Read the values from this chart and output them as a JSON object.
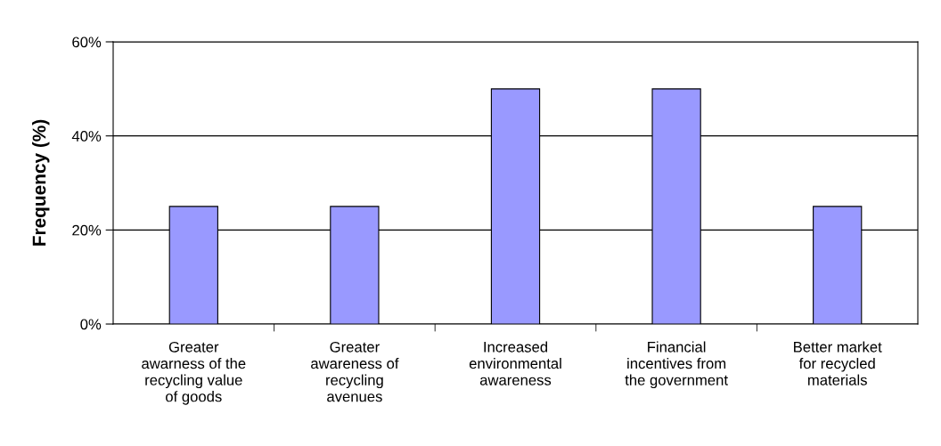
{
  "chart_data": {
    "type": "bar",
    "ylabel": "Frequency (%)",
    "categories": [
      "Greater\nawarness of the\nrecycling value\nof goods",
      "Greater\nawareness of\nrecycling\navenues",
      "Increased\nenvironmental\nawareness",
      "Financial\nincentives from\nthe government",
      "Better market\nfor recycled\nmaterials"
    ],
    "values": [
      25,
      25,
      50,
      50,
      25
    ],
    "color": "#9999ff",
    "ylim": [
      0,
      60
    ],
    "yticks": [
      {
        "value": 0,
        "label": "0%"
      },
      {
        "value": 20,
        "label": "20%"
      },
      {
        "value": 40,
        "label": "40%"
      },
      {
        "value": 60,
        "label": "60%"
      }
    ],
    "grid": "y"
  }
}
